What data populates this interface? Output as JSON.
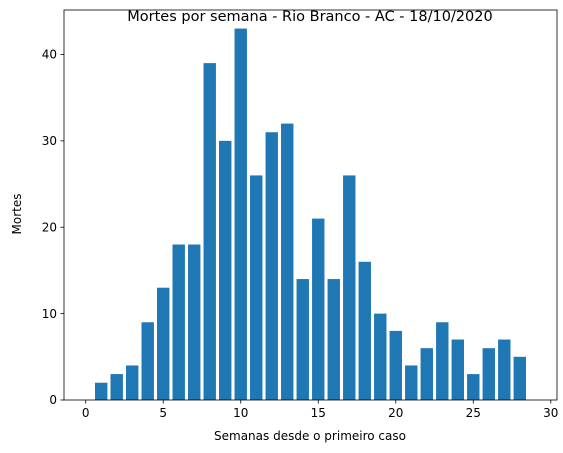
{
  "chart_data": {
    "type": "bar",
    "title": "Mortes por semana - Rio Branco - AC - 18/10/2020",
    "xlabel": "Semanas desde o primeiro caso",
    "ylabel": "Mortes",
    "x": [
      1,
      2,
      3,
      4,
      5,
      6,
      7,
      8,
      9,
      10,
      11,
      12,
      13,
      14,
      15,
      16,
      17,
      18,
      19,
      20,
      21,
      22,
      23,
      24,
      25,
      26,
      27,
      28
    ],
    "values": [
      2,
      3,
      4,
      9,
      13,
      18,
      18,
      39,
      30,
      43,
      26,
      31,
      32,
      14,
      21,
      14,
      26,
      16,
      10,
      8,
      4,
      6,
      9,
      7,
      3,
      6,
      7,
      5
    ],
    "xlim": [
      -1.4,
      30.4
    ],
    "ylim": [
      0,
      45.15
    ],
    "xticks": [
      "0",
      "5",
      "10",
      "15",
      "20",
      "25",
      "30"
    ],
    "yticks": [
      "0",
      "10",
      "20",
      "30",
      "40"
    ],
    "bar_color": "#1f77b4",
    "grid": false,
    "legend": "none"
  }
}
